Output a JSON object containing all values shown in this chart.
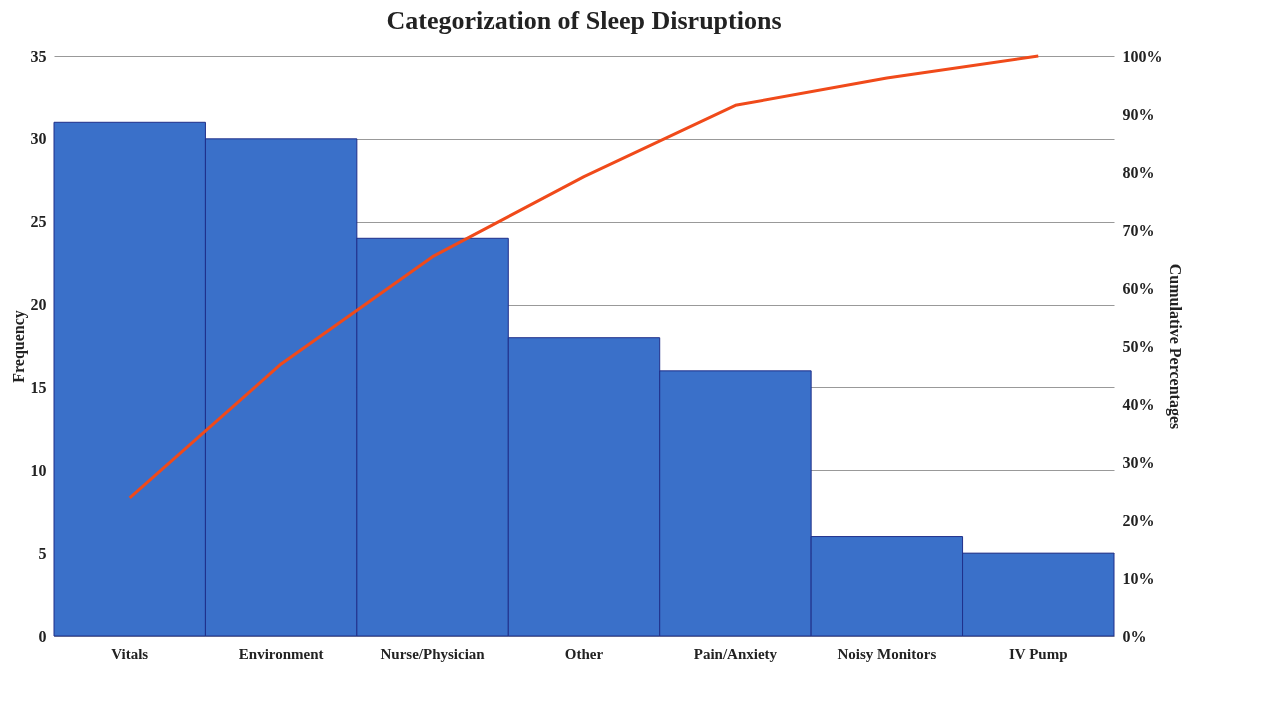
{
  "chart_data": {
    "type": "bar",
    "title": "Categorization of Sleep Disruptions",
    "ylabel": "Frequency",
    "y2label": "Cumulative Percentages",
    "categories": [
      "Vitals",
      "Environment",
      "Nurse/Physician",
      "Other",
      "Pain/Anxiety",
      "Noisy Monitors",
      "IV Pump"
    ],
    "series": [
      {
        "color": "#3a70c9",
        "values": [
          31,
          30,
          24,
          18,
          16,
          6,
          5
        ]
      },
      {
        "type": "line",
        "axis": "y2",
        "color": "#f04a1a",
        "values": [
          23.8,
          46.9,
          65.4,
          79.2,
          91.5,
          96.2,
          100
        ]
      }
    ],
    "ylim": [
      0,
      35
    ],
    "yticks": [
      0,
      5,
      10,
      15,
      20,
      25,
      30,
      35
    ],
    "y2lim": [
      0,
      100
    ],
    "y2ticks": [
      {
        "value": 0,
        "label": "0%"
      },
      {
        "value": 10,
        "label": "10%"
      },
      {
        "value": 20,
        "label": "20%"
      },
      {
        "value": 30,
        "label": "30%"
      },
      {
        "value": 40,
        "label": "40%"
      },
      {
        "value": 50,
        "label": "50%"
      },
      {
        "value": 60,
        "label": "60%"
      },
      {
        "value": 70,
        "label": "70%"
      },
      {
        "value": 80,
        "label": "80%"
      },
      {
        "value": 90,
        "label": "90%"
      },
      {
        "value": 100,
        "label": "100%"
      }
    ],
    "grid": "y",
    "marker": "none",
    "line_style": "solid"
  }
}
